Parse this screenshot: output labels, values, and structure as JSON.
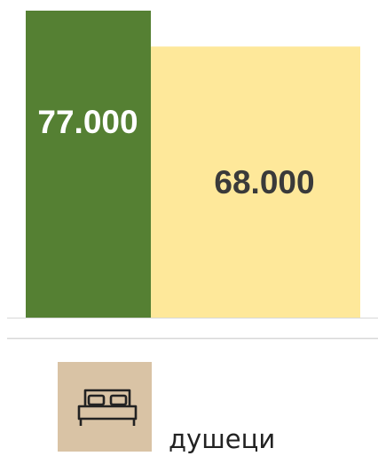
{
  "chart_data": {
    "type": "bar",
    "values": [
      77000,
      68000
    ],
    "value_labels": [
      "77.000",
      "68.000"
    ],
    "colors": [
      "#558033",
      "#fee89a"
    ],
    "label_colors": [
      "#ffffff",
      "#3a3a3a"
    ],
    "caption": "душеци"
  }
}
